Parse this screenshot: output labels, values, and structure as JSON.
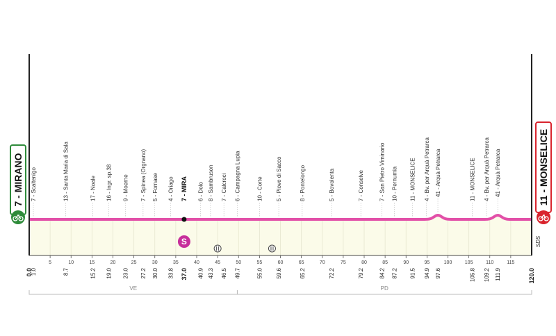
{
  "start": {
    "label": "7 - MIRANO",
    "icon": "bike-icon",
    "color": "#2e8b3a"
  },
  "finish": {
    "label": "11 - MONSELICE",
    "icon": "bike-icon",
    "color": "#d9232d"
  },
  "intermediate_finish": {
    "label": "7 - MIRA",
    "km": "37.0",
    "badge": "S",
    "badge_color": "#c72f9b"
  },
  "profile": {
    "line_color": "#e24fa8",
    "fill_color": "#fbfbe9",
    "total_km": 120.0
  },
  "sds_label": "SDS",
  "waypoints": [
    {
      "label": "7 - Scaltenigo",
      "km": 1.0
    },
    {
      "label": "13 - Santa Maria di Sala",
      "km": 8.7
    },
    {
      "label": "17 - Noale",
      "km": 15.2
    },
    {
      "label": "16 - Ingr. sp.38",
      "km": 19.0
    },
    {
      "label": "9 - Moerne",
      "km": 23.0
    },
    {
      "label": "7 - Spinea (Orgnano)",
      "km": 27.2
    },
    {
      "label": "5 - Fornase",
      "km": 30.0
    },
    {
      "label": "4 - Oriago",
      "km": 33.8
    },
    {
      "label": "6 - Dolo",
      "km": 40.9
    },
    {
      "label": "8 - Sambruson",
      "km": 43.3
    },
    {
      "label": "7 - Calcroci",
      "km": 46.5
    },
    {
      "label": "6 - Campagna Lupia",
      "km": 49.7
    },
    {
      "label": "10 - Corte",
      "km": 55.0
    },
    {
      "label": "5 - Piove di Sacco",
      "km": 59.6
    },
    {
      "label": "8 - Pontelongo",
      "km": 65.2
    },
    {
      "label": "5 - Bovolenta",
      "km": 72.2
    },
    {
      "label": "7 - Conselve",
      "km": 79.2
    },
    {
      "label": "7 - San Pietro Viminario",
      "km": 84.2
    },
    {
      "label": "10 - Pernumia",
      "km": 87.2
    },
    {
      "label": "11 - MONSELICE",
      "km": 91.5
    },
    {
      "label": "4 - Bv. per Arquà Petrarca",
      "km": 94.9
    },
    {
      "label": "41 - Arquà Petrarca",
      "km": 97.6
    },
    {
      "label": "11 - MONSELICE",
      "km": 105.8
    },
    {
      "label": "4 - Bv. per Arquà Petrarca",
      "km": 109.2
    },
    {
      "label": "41 - Arquà Petrarca",
      "km": 111.9
    }
  ],
  "axis_ticks": [
    5,
    10,
    15,
    20,
    25,
    30,
    35,
    40,
    45,
    50,
    55,
    60,
    65,
    70,
    75,
    80,
    85,
    90,
    95,
    100,
    105,
    110,
    115
  ],
  "km_labels": [
    {
      "text": "0.0",
      "km": 0.0,
      "bold": true
    },
    {
      "text": "1.0",
      "km": 1.0,
      "bold": false
    },
    {
      "text": "8.7",
      "km": 8.7,
      "bold": false
    },
    {
      "text": "15.2",
      "km": 15.2,
      "bold": false
    },
    {
      "text": "19.0",
      "km": 19.0,
      "bold": false
    },
    {
      "text": "23.0",
      "km": 23.0,
      "bold": false
    },
    {
      "text": "27.2",
      "km": 27.2,
      "bold": false
    },
    {
      "text": "30.0",
      "km": 30.0,
      "bold": false
    },
    {
      "text": "33.8",
      "km": 33.8,
      "bold": false
    },
    {
      "text": "37.0",
      "km": 37.0,
      "bold": true
    },
    {
      "text": "40.9",
      "km": 40.9,
      "bold": false
    },
    {
      "text": "43.3",
      "km": 43.3,
      "bold": false
    },
    {
      "text": "46.5",
      "km": 46.5,
      "bold": false
    },
    {
      "text": "49.7",
      "km": 49.7,
      "bold": false
    },
    {
      "text": "55.0",
      "km": 55.0,
      "bold": false
    },
    {
      "text": "59.6",
      "km": 59.6,
      "bold": false
    },
    {
      "text": "65.2",
      "km": 65.2,
      "bold": false
    },
    {
      "text": "72.2",
      "km": 72.2,
      "bold": false
    },
    {
      "text": "79.2",
      "km": 79.2,
      "bold": false
    },
    {
      "text": "84.2",
      "km": 84.2,
      "bold": false
    },
    {
      "text": "87.2",
      "km": 87.2,
      "bold": false
    },
    {
      "text": "91.5",
      "km": 91.5,
      "bold": false
    },
    {
      "text": "94.9",
      "km": 94.9,
      "bold": false
    },
    {
      "text": "97.6",
      "km": 97.6,
      "bold": false
    },
    {
      "text": "105.8",
      "km": 105.8,
      "bold": false
    },
    {
      "text": "109.2",
      "km": 109.2,
      "bold": false
    },
    {
      "text": "111.9",
      "km": 111.9,
      "bold": false
    },
    {
      "text": "120.0",
      "km": 120.0,
      "bold": true
    }
  ],
  "regions": [
    {
      "label": "VE",
      "from": 0.0,
      "to": 49.7
    },
    {
      "label": "PD",
      "from": 49.7,
      "to": 120.0
    }
  ],
  "rail_markers": [
    {
      "icon": "railway-crossing-icon",
      "km": 45.0
    },
    {
      "icon": "railway-crossing-icon",
      "km": 58.0
    }
  ]
}
